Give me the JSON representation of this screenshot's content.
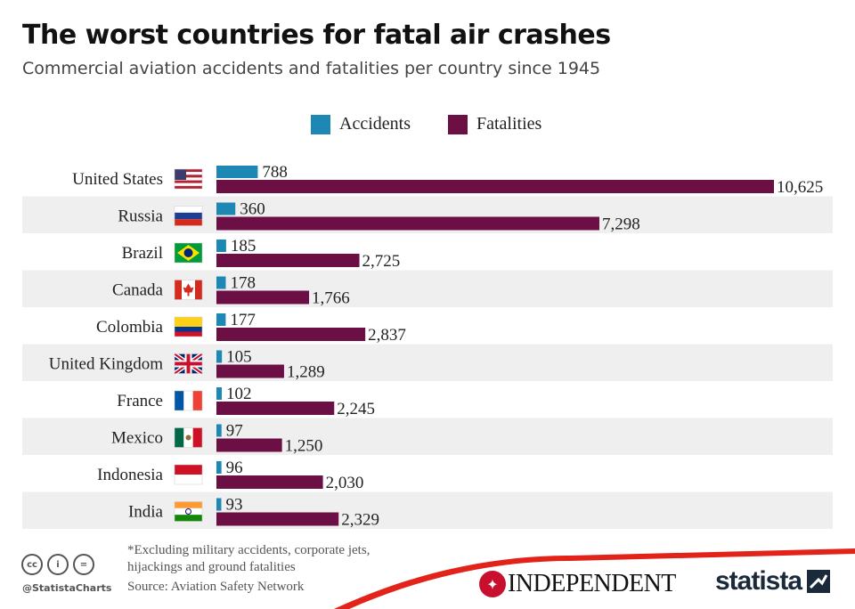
{
  "header": {
    "title": "The worst countries for fatal air crashes",
    "subtitle": "Commercial aviation accidents and fatalities per country since 1945"
  },
  "legend": {
    "accidents_label": "Accidents",
    "fatalities_label": "Fatalities"
  },
  "colors": {
    "accidents": "#1e88b4",
    "fatalities": "#6b0f45",
    "stripe": "#efefef",
    "footer_swoosh": "#e2231a"
  },
  "chart_data": {
    "type": "bar",
    "orientation": "horizontal",
    "title": "The worst countries for fatal air crashes",
    "subtitle": "Commercial aviation accidents and fatalities per country since 1945",
    "categories": [
      "United States",
      "Russia",
      "Brazil",
      "Canada",
      "Colombia",
      "United Kingdom",
      "France",
      "Mexico",
      "Indonesia",
      "India"
    ],
    "series": [
      {
        "name": "Accidents",
        "values": [
          788,
          360,
          185,
          178,
          177,
          105,
          102,
          97,
          96,
          93
        ],
        "labels": [
          "788",
          "360",
          "185",
          "178",
          "177",
          "105",
          "102",
          "97",
          "96",
          "93"
        ]
      },
      {
        "name": "Fatalities",
        "values": [
          10625,
          7298,
          2725,
          1766,
          2837,
          1289,
          2245,
          1250,
          2030,
          2329
        ],
        "labels": [
          "10,625",
          "7,298",
          "2,725",
          "1,766",
          "2,837",
          "1,289",
          "2,245",
          "1,250",
          "2,030",
          "2,329"
        ]
      }
    ],
    "flags": [
      "us-flag-icon",
      "russia-flag-icon",
      "brazil-flag-icon",
      "canada-flag-icon",
      "colombia-flag-icon",
      "uk-flag-icon",
      "france-flag-icon",
      "mexico-flag-icon",
      "indonesia-flag-icon",
      "india-flag-icon"
    ],
    "legend_position": "top-center",
    "xlim": [
      0,
      10625
    ],
    "grid": false
  },
  "footer": {
    "footnote": "*Excluding military accidents, corporate jets, hijackings and ground fatalities",
    "source": "Source: Aviation Safety Network",
    "handle": "@StatistaCharts",
    "independent_logo": "INDEPENDENT",
    "statista_logo": "statista"
  }
}
